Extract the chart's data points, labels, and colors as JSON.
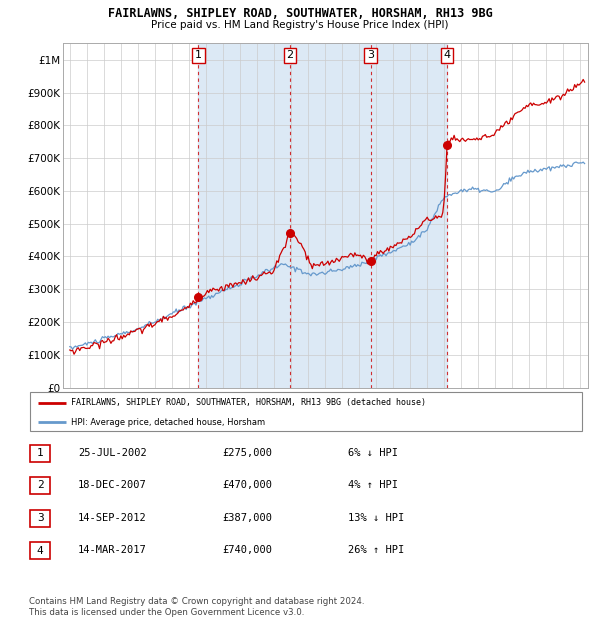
{
  "title1": "FAIRLAWNS, SHIPLEY ROAD, SOUTHWATER, HORSHAM, RH13 9BG",
  "title2": "Price paid vs. HM Land Registry's House Price Index (HPI)",
  "xlim": [
    1994.6,
    2025.5
  ],
  "ylim": [
    0,
    1050000
  ],
  "yticks": [
    0,
    100000,
    200000,
    300000,
    400000,
    500000,
    600000,
    700000,
    800000,
    900000,
    1000000
  ],
  "ytick_labels": [
    "£0",
    "£100K",
    "£200K",
    "£300K",
    "£400K",
    "£500K",
    "£600K",
    "£700K",
    "£800K",
    "£900K",
    "£1M"
  ],
  "sale_dates": [
    2002.56,
    2007.96,
    2012.71,
    2017.2
  ],
  "sale_prices": [
    275000,
    470000,
    387000,
    740000
  ],
  "legend_line1": "FAIRLAWNS, SHIPLEY ROAD, SOUTHWATER, HORSHAM, RH13 9BG (detached house)",
  "legend_line2": "HPI: Average price, detached house, Horsham",
  "table_data": [
    [
      "1",
      "25-JUL-2002",
      "£275,000",
      "6% ↓ HPI"
    ],
    [
      "2",
      "18-DEC-2007",
      "£470,000",
      "4% ↑ HPI"
    ],
    [
      "3",
      "14-SEP-2012",
      "£387,000",
      "13% ↓ HPI"
    ],
    [
      "4",
      "14-MAR-2017",
      "£740,000",
      "26% ↑ HPI"
    ]
  ],
  "footer": "Contains HM Land Registry data © Crown copyright and database right 2024.\nThis data is licensed under the Open Government Licence v3.0.",
  "hpi_color": "#6699cc",
  "price_color": "#cc0000",
  "bg_shaded": "#dce9f5",
  "dashed_color": "#cc0000"
}
